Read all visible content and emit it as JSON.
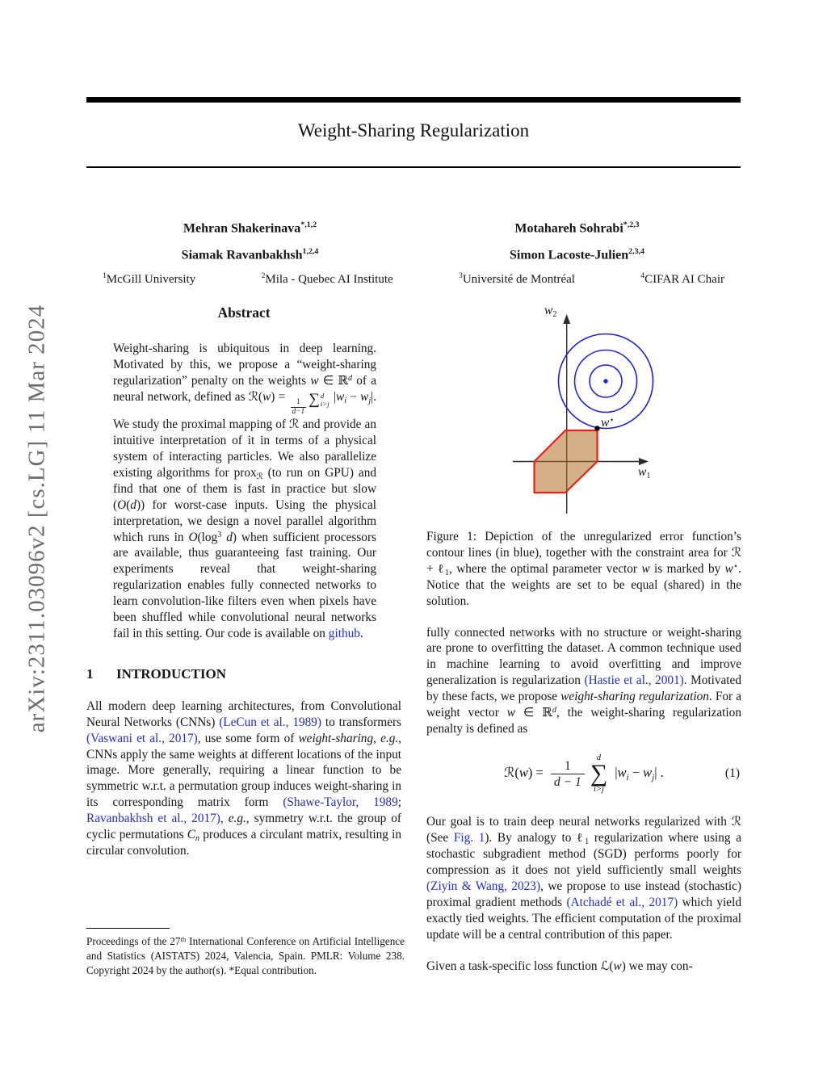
{
  "page": {
    "arxiv_stamp": "arXiv:2311.03096v2  [cs.LG]  11 Mar 2024"
  },
  "header": {
    "title": "Weight-Sharing Regularization"
  },
  "authors": {
    "left": [
      {
        "name": "Mehran Shakerinava",
        "sup": "*,1,2"
      },
      {
        "name": "Siamak Ravanbakhsh",
        "sup": "1,2,4"
      }
    ],
    "right": [
      {
        "name": "Motahareh Sohrabi",
        "sup": "*,2,3"
      },
      {
        "name": "Simon Lacoste-Julien",
        "sup": "2,3,4"
      }
    ]
  },
  "affiliations": [
    {
      "sup": "1",
      "name": "McGill University"
    },
    {
      "sup": "2",
      "name": "Mila - Quebec AI Institute"
    },
    {
      "sup": "3",
      "name": "Université de Montréal"
    },
    {
      "sup": "4",
      "name": "CIFAR AI Chair"
    }
  ],
  "abstract": {
    "heading": "Abstract",
    "body": [
      "Weight-sharing is ubiquitous in deep learning. Motivated by this, we propose a “weight-sharing regularization” penalty on the weights ",
      {
        "t": "w",
        "s": "i"
      },
      " ∈ ",
      {
        "t": "ℝ",
        "s": "bb"
      },
      {
        "t": "d",
        "s": "sup i"
      },
      " of a neural network, defined as ",
      {
        "t": "ℛ",
        "s": "cal"
      },
      "(",
      {
        "t": "w",
        "s": "i"
      },
      ") = ",
      {
        "s": "frac",
        "n": "1",
        "d": "d−1"
      },
      {
        "s": "sum",
        "top": "d",
        "bot": "i>j"
      },
      " |",
      {
        "t": "w",
        "s": "i"
      },
      {
        "t": "i",
        "s": "sub i"
      },
      " − ",
      {
        "t": "w",
        "s": "i"
      },
      {
        "t": "j",
        "s": "sub i"
      },
      "|. We study the proximal mapping of ",
      {
        "t": "ℛ",
        "s": "cal"
      },
      " and provide an intuitive interpretation of it in terms of a physical system of interacting particles. We also parallelize existing algorithms for prox",
      {
        "t": "ℛ",
        "s": "sub cal"
      },
      " (to run on GPU) and find that one of them is fast in practice but slow (",
      {
        "t": "O",
        "s": "i"
      },
      "(",
      {
        "t": "d",
        "s": "i"
      },
      ")) for worst-case inputs. Using the physical interpretation, we design a novel parallel algorithm which runs in ",
      {
        "t": "O",
        "s": "i"
      },
      "(log",
      {
        "t": "3",
        "s": "sup"
      },
      " ",
      {
        "t": "d",
        "s": "i"
      },
      ") when sufficient processors are available, thus guaranteeing fast training. Our experiments reveal that weight-sharing regularization enables fully connected networks to learn convolution-like filters even when pixels have been shuffled while convolutional neural networks fail in this setting. Our code is available on ",
      {
        "t": "github",
        "a": true,
        "n": "github-link"
      },
      "."
    ]
  },
  "intro": {
    "number": "1",
    "heading": "INTRODUCTION",
    "p1": [
      "All modern deep learning architectures, from Convolutional Neural Networks (CNNs) ",
      {
        "t": "(LeCun et al., 1989)",
        "a": true
      },
      " to transformers ",
      {
        "t": "(Vaswani et al., 2017)",
        "a": true
      },
      ", use some form of ",
      {
        "t": "weight-sharing",
        "s": "i"
      },
      ", ",
      {
        "t": "e.g.",
        "s": "i"
      },
      ", CNNs apply the same weights at different locations of the input image. More generally, requiring a linear function to be symmetric w.r.t. a permutation group induces weight-sharing in its corresponding matrix form ",
      {
        "t": "(Shawe-Taylor, 1989",
        "a": true
      },
      "; ",
      {
        "t": "Ravanbakhsh et al., 2017)",
        "a": true
      },
      ", ",
      {
        "t": "e.g.",
        "s": "i"
      },
      ", symmetry w.r.t. the group of cyclic permutations ",
      {
        "t": "C",
        "s": "i"
      },
      {
        "t": "n",
        "s": "sub i"
      },
      " produces a circulant matrix, resulting in circular convolution."
    ]
  },
  "footnote": {
    "text": [
      "Proceedings of the 27",
      {
        "t": "th",
        "s": "sup"
      },
      " International Conference on Artificial Intelligence and Statistics (AISTATS) 2024, Valencia, Spain. PMLR: Volume 238. Copyright 2024 by the author(s). *Equal contribution."
    ]
  },
  "figure": {
    "caption": [
      "Figure 1: Depiction of the unregularized error function’s contour lines (in blue), together with the constraint area for ",
      {
        "t": "ℛ",
        "s": "cal"
      },
      " + ℓ",
      {
        "t": "1",
        "s": "sub"
      },
      ", where the optimal parameter vector ",
      {
        "t": "w",
        "s": "i"
      },
      " is marked by ",
      {
        "t": "w",
        "s": "i"
      },
      {
        "t": "⋆",
        "s": "sup"
      },
      ". Notice that the weights are set to be equal (shared) in the solution."
    ],
    "labels": {
      "y": [
        {
          "t": "w",
          "s": "i"
        },
        {
          "t": "2",
          "s": "sub"
        }
      ],
      "x": [
        {
          "t": "w",
          "s": "i"
        },
        {
          "t": "1",
          "s": "sub"
        }
      ],
      "optimum": [
        {
          "t": "w",
          "s": "i"
        },
        {
          "t": "⋆",
          "s": "sup"
        }
      ]
    },
    "colors": {
      "contour": "#2222cf",
      "center_dot": "#2222cf",
      "constraint_fill": "#b06f28",
      "constraint_stroke": "#e02415",
      "axis": "#2b2b2b",
      "optimum_dot": "#000000"
    }
  },
  "right": {
    "p1": [
      "fully connected networks with no structure or weight-sharing are prone to overfitting the dataset. A common technique used in machine learning to avoid overfitting and improve generalization is regularization ",
      {
        "t": "(Hastie et al., 2001)",
        "a": true
      },
      ". Motivated by these facts, we propose ",
      {
        "t": "weight-sharing regularization",
        "s": "i"
      },
      ". For a weight vector ",
      {
        "t": "w",
        "s": "i"
      },
      " ∈ ",
      {
        "t": "ℝ",
        "s": "bb"
      },
      {
        "t": "d",
        "s": "sup i"
      },
      ", the weight-sharing regularization penalty is defined as"
    ],
    "equation": {
      "lhs": [
        {
          "t": "ℛ",
          "s": "cal"
        },
        "(",
        {
          "t": "w",
          "s": "i"
        },
        ") = ",
        {
          "s": "dfrac",
          "n": "1",
          "d": "d − 1"
        },
        {
          "s": "dsum",
          "top": "d",
          "bot": "i>j"
        },
        " |",
        {
          "t": "w",
          "s": "i"
        },
        {
          "t": "i",
          "s": "sub i"
        },
        " − ",
        {
          "t": "w",
          "s": "i"
        },
        {
          "t": "j",
          "s": "sub i"
        },
        "| ."
      ],
      "number": "(1)"
    },
    "p2": [
      "Our goal is to train deep neural networks regularized with ",
      {
        "t": "ℛ",
        "s": "cal"
      },
      " (See ",
      {
        "t": "Fig. 1",
        "a": true,
        "n": "figure-ref-link"
      },
      "). By analogy to ℓ",
      {
        "t": "1",
        "s": "sub"
      },
      " regularization where using a stochastic subgradient method (SGD) performs poorly for compression as it does not yield sufficiently small weights ",
      {
        "t": "(Ziyin & Wang, 2023)",
        "a": true
      },
      ", we propose to use instead (stochastic) proximal gradient methods ",
      {
        "t": "(Atchadé et al., 2017)",
        "a": true
      },
      " which yield exactly tied weights. The efficient computation of the proximal update will be a central contribution of this paper."
    ],
    "p3": [
      "Given a task-specific loss function ",
      {
        "t": "ℒ",
        "s": "cal"
      },
      "(",
      {
        "t": "w",
        "s": "i"
      },
      ") we may con-"
    ]
  }
}
